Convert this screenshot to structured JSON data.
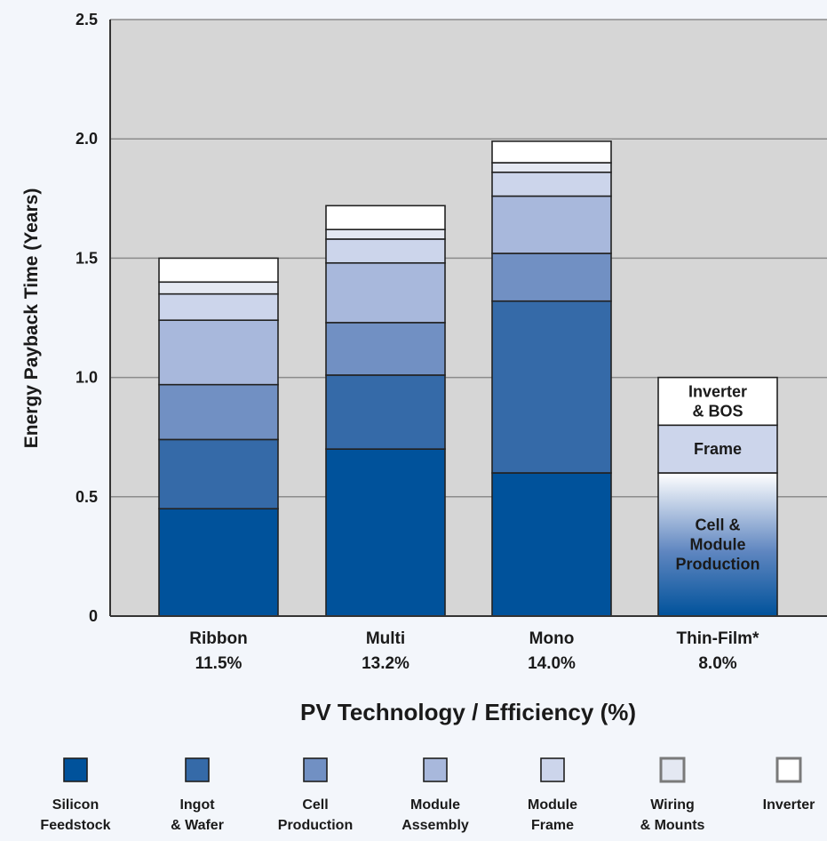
{
  "chart_data": {
    "type": "bar",
    "stacked": true,
    "title": "",
    "xlabel": "PV Technology / Efficiency (%)",
    "ylabel": "Energy Payback Time (Years)",
    "ylim": [
      0,
      2.5
    ],
    "yticks": [
      "0",
      "0.5",
      "1.0",
      "1.5",
      "2.0",
      "2.5"
    ],
    "grid": true,
    "legend_position": "bottom",
    "categories": [
      {
        "name": "Ribbon",
        "efficiency": "11.5%"
      },
      {
        "name": "Multi",
        "efficiency": "13.2%"
      },
      {
        "name": "Mono",
        "efficiency": "14.0%"
      },
      {
        "name": "Thin-Film*",
        "efficiency": "8.0%"
      }
    ],
    "legend": [
      {
        "line1": "Silicon",
        "line2": "Feedstock",
        "color": "#00529b"
      },
      {
        "line1": "Ingot",
        "line2": "& Wafer",
        "color": "#356aa8"
      },
      {
        "line1": "Cell",
        "line2": "Production",
        "color": "#7190c3"
      },
      {
        "line1": "Module",
        "line2": "Assembly",
        "color": "#a8b8dc"
      },
      {
        "line1": "Module",
        "line2": "Frame",
        "color": "#ccd5eb"
      },
      {
        "line1": "Wiring",
        "line2": "& Mounts",
        "color": "#e4e8f2"
      },
      {
        "line1": "Inverter",
        "line2": "",
        "color": "#ffffff"
      }
    ],
    "series": [
      {
        "name": "Silicon Feedstock",
        "values": [
          0.45,
          0.7,
          0.6,
          null
        ]
      },
      {
        "name": "Ingot & Wafer",
        "values": [
          0.29,
          0.31,
          0.72,
          null
        ]
      },
      {
        "name": "Cell Production",
        "values": [
          0.23,
          0.22,
          0.2,
          null
        ]
      },
      {
        "name": "Module Assembly",
        "values": [
          0.27,
          0.25,
          0.24,
          null
        ]
      },
      {
        "name": "Module Frame",
        "values": [
          0.11,
          0.1,
          0.1,
          null
        ]
      },
      {
        "name": "Wiring & Mounts",
        "values": [
          0.05,
          0.04,
          0.04,
          null
        ]
      },
      {
        "name": "Inverter",
        "values": [
          0.1,
          0.1,
          0.09,
          null
        ]
      }
    ],
    "thin_film_segments": [
      {
        "label": "Cell & Module Production",
        "lines": [
          "Cell  &",
          "Module",
          "Production"
        ],
        "value": 0.6,
        "color": "#00529b"
      },
      {
        "label": "Frame",
        "lines": [
          "Frame"
        ],
        "value": 0.2,
        "color": "#ccd5eb"
      },
      {
        "label": "Inverter & BOS",
        "lines": [
          "Inverter",
          "& BOS"
        ],
        "value": 0.2,
        "color": "#ffffff"
      }
    ]
  }
}
